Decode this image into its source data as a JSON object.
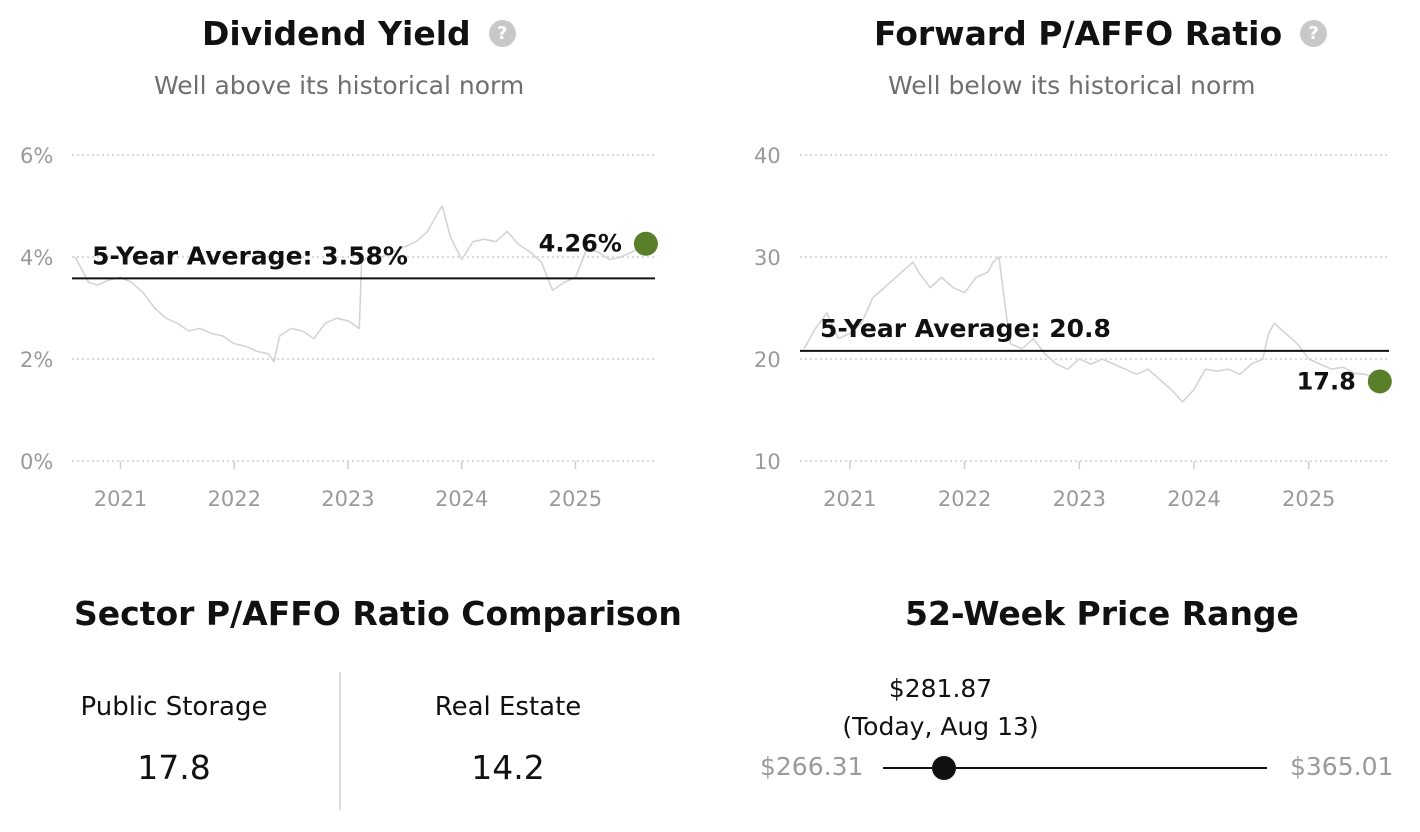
{
  "dividend_yield": {
    "title": "Dividend Yield",
    "subtitle": "Well above its historical norm",
    "help_icon": "question-circle-icon"
  },
  "paffo_ratio": {
    "title": "Forward P/AFFO Ratio",
    "subtitle": "Well below its historical norm",
    "help_icon": "question-circle-icon"
  },
  "sector": {
    "title": "Sector P/AFFO Ratio Comparison",
    "items": [
      {
        "name": "Public Storage",
        "value": "17.8"
      },
      {
        "name": "Real Estate",
        "value": "14.2"
      }
    ]
  },
  "price_range": {
    "title": "52-Week Price Range",
    "low_label": "$266.31",
    "high_label": "$365.01",
    "low": 266.31,
    "high": 365.01,
    "current": 281.87,
    "current_label": "$281.87",
    "current_note": "(Today, Aug 13)"
  },
  "chart_data": [
    {
      "type": "line",
      "title": "Dividend Yield",
      "subtitle": "Well above its historical norm",
      "ylim": [
        0,
        6
      ],
      "yticks": [
        0,
        2,
        4,
        6
      ],
      "ytick_labels": [
        "0%",
        "2%",
        "4%",
        "6%"
      ],
      "xlim": [
        2020.6,
        2025.7
      ],
      "xticks": [
        2021,
        2022,
        2023,
        2024,
        2025
      ],
      "xtick_labels": [
        "2021",
        "2022",
        "2023",
        "2024",
        "2025"
      ],
      "grid": true,
      "line_color": "#d4d4d4",
      "average": {
        "value": 3.58,
        "label": "5-Year Average: 3.58%"
      },
      "current": {
        "x": 2025.62,
        "value": 4.26,
        "label": "4.26%",
        "color": "#5a7f2b"
      },
      "series": [
        {
          "x": [
            2020.6,
            2020.65,
            2020.72,
            2020.8,
            2020.9,
            2021.0,
            2021.1,
            2021.2,
            2021.3,
            2021.4,
            2021.5,
            2021.6,
            2021.7,
            2021.8,
            2021.9,
            2022.0,
            2022.1,
            2022.2,
            2022.3,
            2022.35,
            2022.4,
            2022.5,
            2022.6,
            2022.7,
            2022.8,
            2022.9,
            2023.0,
            2023.1,
            2023.12,
            2023.2,
            2023.3,
            2023.4,
            2023.5,
            2023.6,
            2023.7,
            2023.8,
            2023.83,
            2023.9,
            2024.0,
            2024.1,
            2024.2,
            2024.3,
            2024.4,
            2024.5,
            2024.6,
            2024.7,
            2024.8,
            2024.9,
            2025.0,
            2025.1,
            2025.2,
            2025.3,
            2025.4,
            2025.5,
            2025.6
          ],
          "values": [
            4.0,
            3.8,
            3.5,
            3.45,
            3.55,
            3.6,
            3.5,
            3.3,
            3.0,
            2.8,
            2.7,
            2.55,
            2.6,
            2.5,
            2.45,
            2.3,
            2.25,
            2.15,
            2.1,
            1.95,
            2.45,
            2.6,
            2.55,
            2.4,
            2.7,
            2.8,
            2.75,
            2.6,
            3.9,
            4.05,
            4.0,
            4.1,
            4.2,
            4.3,
            4.5,
            4.9,
            5.0,
            4.4,
            3.95,
            4.3,
            4.35,
            4.3,
            4.5,
            4.25,
            4.1,
            3.9,
            3.35,
            3.5,
            3.6,
            4.15,
            4.1,
            3.95,
            4.0,
            4.1,
            4.22
          ]
        }
      ]
    },
    {
      "type": "line",
      "title": "Forward P/AFFO Ratio",
      "subtitle": "Well below its historical norm",
      "ylim": [
        10,
        40
      ],
      "yticks": [
        10,
        20,
        30,
        40
      ],
      "ytick_labels": [
        "10",
        "20",
        "30",
        "40"
      ],
      "xlim": [
        2020.6,
        2025.7
      ],
      "xticks": [
        2021,
        2022,
        2023,
        2024,
        2025
      ],
      "xtick_labels": [
        "2021",
        "2022",
        "2023",
        "2024",
        "2025"
      ],
      "grid": true,
      "line_color": "#d4d4d4",
      "average": {
        "value": 20.8,
        "label": "5-Year Average: 20.8"
      },
      "current": {
        "x": 2025.62,
        "value": 17.8,
        "label": "17.8",
        "color": "#5a7f2b"
      },
      "series": [
        {
          "x": [
            2020.6,
            2020.7,
            2020.8,
            2020.9,
            2021.0,
            2021.1,
            2021.2,
            2021.3,
            2021.4,
            2021.5,
            2021.55,
            2021.6,
            2021.7,
            2021.8,
            2021.9,
            2022.0,
            2022.1,
            2022.2,
            2022.25,
            2022.3,
            2022.35,
            2022.4,
            2022.5,
            2022.6,
            2022.7,
            2022.8,
            2022.9,
            2023.0,
            2023.1,
            2023.2,
            2023.3,
            2023.4,
            2023.5,
            2023.6,
            2023.7,
            2023.8,
            2023.9,
            2024.0,
            2024.1,
            2024.2,
            2024.3,
            2024.4,
            2024.5,
            2024.6,
            2024.65,
            2024.7,
            2024.8,
            2024.9,
            2025.0,
            2025.1,
            2025.2,
            2025.3,
            2025.4,
            2025.5,
            2025.6
          ],
          "values": [
            21.0,
            23.0,
            24.5,
            22.0,
            22.5,
            23.5,
            26.0,
            27.0,
            28.0,
            29.0,
            29.5,
            28.5,
            27.0,
            28.0,
            27.0,
            26.5,
            28.0,
            28.5,
            29.5,
            30.0,
            25.5,
            21.5,
            21.0,
            22.0,
            20.5,
            19.5,
            19.0,
            20.0,
            19.5,
            20.0,
            19.5,
            19.0,
            18.5,
            19.0,
            18.0,
            17.0,
            15.8,
            17.0,
            19.0,
            18.8,
            19.0,
            18.5,
            19.5,
            20.0,
            22.5,
            23.5,
            22.5,
            21.5,
            20.0,
            19.5,
            19.0,
            19.2,
            18.6,
            18.5,
            17.9
          ]
        }
      ]
    }
  ]
}
